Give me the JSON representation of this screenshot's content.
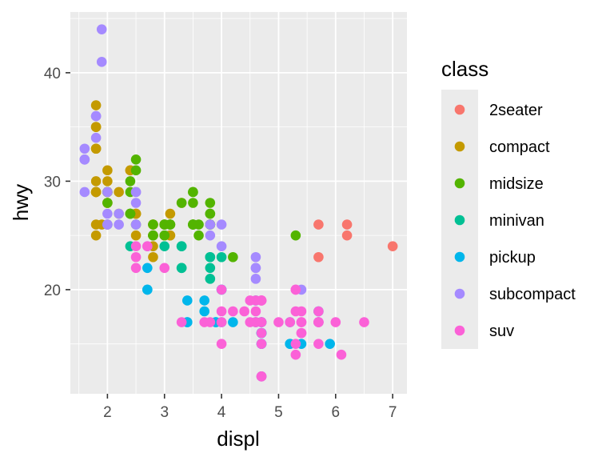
{
  "chart_data": {
    "type": "scatter",
    "title": "",
    "xlabel": "displ",
    "ylabel": "hwy",
    "xlim": [
      1.35,
      7.25
    ],
    "ylim": [
      10.4,
      45.6
    ],
    "x_ticks": [
      2,
      3,
      4,
      5,
      6,
      7
    ],
    "y_ticks": [
      20,
      30,
      40
    ],
    "grid": true,
    "legend": {
      "title": "class",
      "placement": "right"
    },
    "series": [
      {
        "name": "2seater",
        "color": "#F8766D",
        "points": [
          [
            5.7,
            26
          ],
          [
            5.7,
            23
          ],
          [
            6.2,
            26
          ],
          [
            6.2,
            25
          ],
          [
            7.0,
            24
          ]
        ]
      },
      {
        "name": "compact",
        "color": "#C49A00",
        "points": [
          [
            1.8,
            29
          ],
          [
            1.8,
            29
          ],
          [
            2.0,
            31
          ],
          [
            2.0,
            30
          ],
          [
            2.8,
            26
          ],
          [
            2.8,
            26
          ],
          [
            3.1,
            27
          ],
          [
            1.8,
            26
          ],
          [
            1.8,
            25
          ],
          [
            2.0,
            28
          ],
          [
            2.0,
            28
          ],
          [
            2.8,
            25
          ],
          [
            2.8,
            25
          ],
          [
            3.1,
            25
          ],
          [
            3.1,
            25
          ],
          [
            2.2,
            27
          ],
          [
            2.2,
            29
          ],
          [
            2.4,
            31
          ],
          [
            2.4,
            31
          ],
          [
            3.0,
            26
          ],
          [
            3.0,
            26
          ],
          [
            3.3,
            28
          ],
          [
            1.8,
            29
          ],
          [
            1.8,
            29
          ],
          [
            1.8,
            33
          ],
          [
            1.8,
            35
          ],
          [
            1.8,
            37
          ],
          [
            1.8,
            35
          ],
          [
            1.8,
            33
          ],
          [
            2.0,
            29
          ],
          [
            2.0,
            29
          ],
          [
            2.8,
            23
          ],
          [
            2.8,
            24
          ],
          [
            2.5,
            27
          ],
          [
            2.5,
            25
          ],
          [
            2.5,
            27
          ],
          [
            2.5,
            27
          ],
          [
            1.8,
            30
          ],
          [
            1.9,
            26
          ],
          [
            2.0,
            29
          ]
        ]
      },
      {
        "name": "midsize",
        "color": "#53B400",
        "points": [
          [
            2.4,
            27
          ],
          [
            2.4,
            30
          ],
          [
            2.5,
            32
          ],
          [
            2.5,
            31
          ],
          [
            3.0,
            26
          ],
          [
            3.0,
            25
          ],
          [
            3.0,
            26
          ],
          [
            3.5,
            29
          ],
          [
            3.5,
            28
          ],
          [
            3.8,
            28
          ],
          [
            3.8,
            26
          ],
          [
            3.8,
            26
          ],
          [
            3.8,
            27
          ],
          [
            3.8,
            26
          ],
          [
            4.2,
            23
          ],
          [
            2.4,
            27
          ],
          [
            2.4,
            27
          ],
          [
            2.5,
            26
          ],
          [
            3.5,
            26
          ],
          [
            3.5,
            26
          ],
          [
            2.4,
            29
          ],
          [
            2.4,
            27
          ],
          [
            3.1,
            26
          ],
          [
            3.5,
            26
          ],
          [
            3.6,
            26
          ],
          [
            5.3,
            25
          ],
          [
            2.0,
            29
          ],
          [
            2.0,
            28
          ],
          [
            2.8,
            26
          ],
          [
            3.1,
            26
          ],
          [
            2.0,
            26
          ],
          [
            2.0,
            29
          ],
          [
            2.8,
            25
          ],
          [
            2.8,
            25
          ],
          [
            3.6,
            25
          ],
          [
            3.1,
            26
          ],
          [
            3.3,
            28
          ],
          [
            3.5,
            29
          ],
          [
            3.5,
            26
          ],
          [
            3.8,
            27
          ],
          [
            3.0,
            25
          ]
        ]
      },
      {
        "name": "minivan",
        "color": "#00C094",
        "points": [
          [
            2.4,
            24
          ],
          [
            3.0,
            24
          ],
          [
            3.3,
            22
          ],
          [
            3.3,
            22
          ],
          [
            3.3,
            24
          ],
          [
            3.8,
            21
          ],
          [
            3.8,
            22
          ],
          [
            3.8,
            23
          ],
          [
            4.0,
            23
          ],
          [
            3.3,
            24
          ],
          [
            3.8,
            23
          ]
        ]
      },
      {
        "name": "pickup",
        "color": "#00B6EB",
        "points": [
          [
            3.7,
            19
          ],
          [
            3.7,
            18
          ],
          [
            3.9,
            17
          ],
          [
            3.9,
            17
          ],
          [
            4.7,
            16
          ],
          [
            4.7,
            16
          ],
          [
            4.7,
            17
          ],
          [
            4.7,
            16
          ],
          [
            4.7,
            15
          ],
          [
            4.7,
            17
          ],
          [
            4.7,
            12
          ],
          [
            5.2,
            15
          ],
          [
            5.2,
            15
          ],
          [
            5.2,
            17
          ],
          [
            5.7,
            17
          ],
          [
            5.9,
            15
          ],
          [
            2.7,
            20
          ],
          [
            2.7,
            20
          ],
          [
            2.7,
            22
          ],
          [
            3.4,
            17
          ],
          [
            3.4,
            17
          ],
          [
            4.0,
            20
          ],
          [
            4.0,
            17
          ],
          [
            4.0,
            20
          ],
          [
            4.7,
            16
          ],
          [
            4.7,
            15
          ],
          [
            4.7,
            17
          ],
          [
            5.7,
            18
          ],
          [
            4.7,
            16
          ],
          [
            4.6,
            19
          ],
          [
            5.4,
            15
          ],
          [
            4.6,
            17
          ],
          [
            4.2,
            17
          ],
          [
            3.4,
            19
          ]
        ]
      },
      {
        "name": "subcompact",
        "color": "#A58AFF",
        "points": [
          [
            3.8,
            26
          ],
          [
            3.8,
            25
          ],
          [
            4.0,
            26
          ],
          [
            4.0,
            24
          ],
          [
            4.6,
            21
          ],
          [
            4.6,
            22
          ],
          [
            4.6,
            23
          ],
          [
            4.6,
            22
          ],
          [
            5.4,
            20
          ],
          [
            1.6,
            33
          ],
          [
            1.6,
            32
          ],
          [
            1.6,
            32
          ],
          [
            1.6,
            29
          ],
          [
            1.6,
            32
          ],
          [
            1.8,
            34
          ],
          [
            1.8,
            36
          ],
          [
            1.8,
            36
          ],
          [
            2.0,
            29
          ],
          [
            2.0,
            26
          ],
          [
            2.0,
            27
          ],
          [
            2.0,
            26
          ],
          [
            2.5,
            28
          ],
          [
            2.5,
            29
          ],
          [
            2.2,
            26
          ],
          [
            2.2,
            27
          ],
          [
            2.5,
            26
          ],
          [
            2.7,
            24
          ],
          [
            1.9,
            44
          ],
          [
            1.9,
            41
          ],
          [
            2.5,
            29
          ]
        ]
      },
      {
        "name": "suv",
        "color": "#FB61D7",
        "points": [
          [
            5.3,
            20
          ],
          [
            5.3,
            15
          ],
          [
            5.3,
            20
          ],
          [
            5.7,
            17
          ],
          [
            6.0,
            17
          ],
          [
            4.7,
            19
          ],
          [
            4.7,
            19
          ],
          [
            5.2,
            17
          ],
          [
            5.7,
            17
          ],
          [
            6.5,
            17
          ],
          [
            4.7,
            19
          ],
          [
            4.7,
            17
          ],
          [
            5.3,
            14
          ],
          [
            5.4,
            17
          ],
          [
            5.4,
            18
          ],
          [
            5.7,
            18
          ],
          [
            6.1,
            14
          ],
          [
            4.6,
            19
          ],
          [
            4.6,
            17
          ],
          [
            4.0,
            20
          ],
          [
            4.0,
            15
          ],
          [
            4.7,
            15
          ],
          [
            4.7,
            17
          ],
          [
            4.7,
            12
          ],
          [
            4.7,
            12
          ],
          [
            3.7,
            17
          ],
          [
            3.3,
            17
          ],
          [
            3.8,
            17
          ],
          [
            4.0,
            17
          ],
          [
            4.4,
            18
          ],
          [
            4.6,
            18
          ],
          [
            5.4,
            17
          ],
          [
            5.4,
            16
          ],
          [
            2.5,
            23
          ],
          [
            2.5,
            24
          ],
          [
            2.5,
            22
          ],
          [
            2.7,
            24
          ],
          [
            3.0,
            22
          ],
          [
            4.0,
            18
          ],
          [
            4.2,
            18
          ],
          [
            4.5,
            19
          ],
          [
            5.0,
            17
          ],
          [
            5.4,
            16
          ],
          [
            5.7,
            15
          ],
          [
            4.5,
            17
          ],
          [
            4.7,
            16
          ],
          [
            5.3,
            18
          ],
          [
            5.7,
            17
          ]
        ]
      }
    ]
  }
}
